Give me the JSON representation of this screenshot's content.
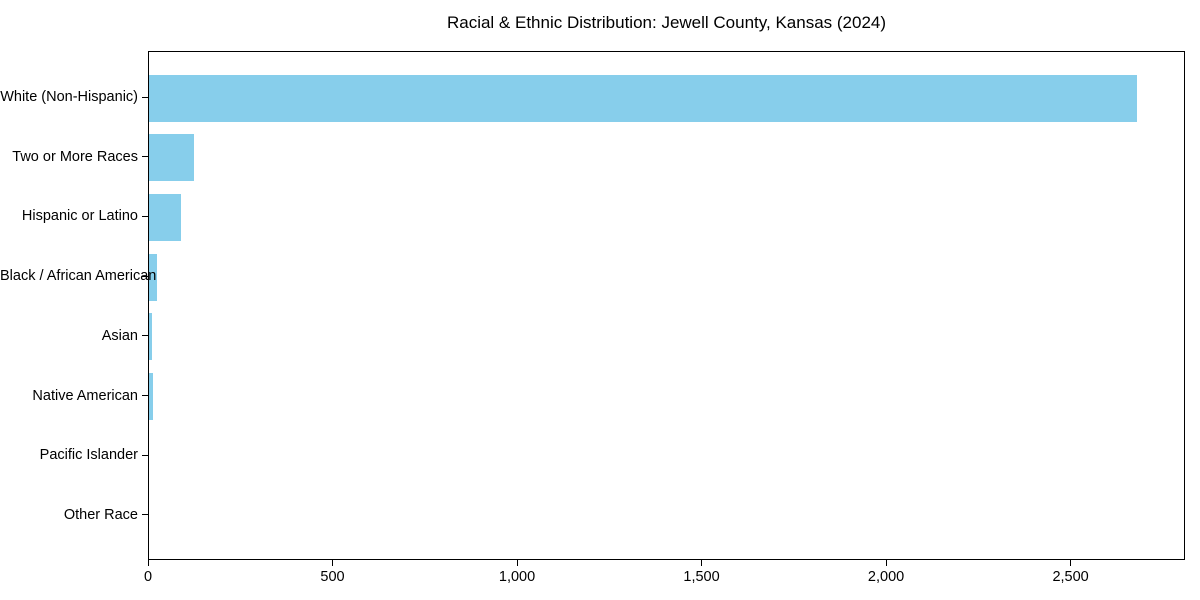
{
  "figure": {
    "background": "#ffffff"
  },
  "chart_data": {
    "type": "bar",
    "orientation": "horizontal",
    "title": "Racial & Ethnic Distribution: Jewell County, Kansas (2024)",
    "categories": [
      "White (Non-Hispanic)",
      "Two or More Races",
      "Hispanic or Latino",
      "Black / African American",
      "Asian",
      "Native American",
      "Pacific Islander",
      "Other Race"
    ],
    "values": [
      2676,
      121,
      86,
      22,
      8,
      10,
      0,
      0
    ],
    "xlabel": "",
    "ylabel": "",
    "xlim": [
      0,
      2810
    ],
    "x_ticks": [
      0,
      500,
      1000,
      1500,
      2000,
      2500
    ],
    "x_tick_labels": [
      "0",
      "500",
      "1,000",
      "1,500",
      "2,000",
      "2,500"
    ],
    "bar_color": "#87CEEB",
    "axis_color": "#000000",
    "grid": false,
    "legend": null
  }
}
